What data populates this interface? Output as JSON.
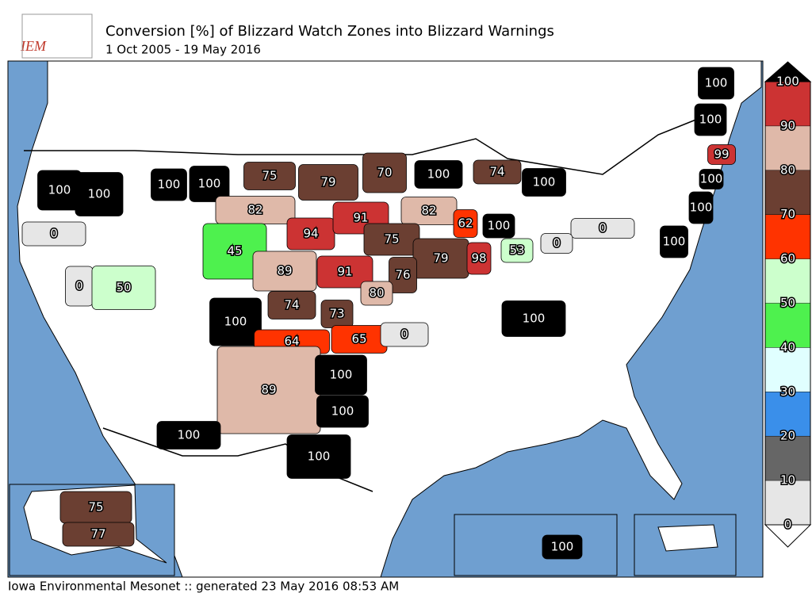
{
  "header": {
    "logo_text": "IEM",
    "title": "Conversion [%] of Blizzard Watch Zones into Blizzard Warnings",
    "subtitle": "1 Oct 2005 - 19 May 2016"
  },
  "footer": "Iowa Environmental Mesonet :: generated 23 May 2016 08:53 AM",
  "colorbar": {
    "bounds": [
      0,
      10,
      20,
      30,
      40,
      50,
      60,
      70,
      80,
      90,
      100
    ],
    "colors": [
      "#e6e6e6",
      "#666666",
      "#3a8fea",
      "#e0ffff",
      "#4ef14e",
      "#ccffcc",
      "#ff3300",
      "#6b3f32",
      "#dfb9a9",
      "#cc3333"
    ],
    "over_color": "#000000",
    "under_color": "#ffffff"
  },
  "regions": [
    {
      "value": 100
    },
    {
      "value": 100
    },
    {
      "value": 100
    },
    {
      "value": 100
    },
    {
      "value": 75
    },
    {
      "value": 79
    },
    {
      "value": 70
    },
    {
      "value": 100
    },
    {
      "value": 74
    },
    {
      "value": 100
    },
    {
      "value": 100
    },
    {
      "value": 100
    },
    {
      "value": 99
    },
    {
      "value": 100
    },
    {
      "value": 100
    },
    {
      "value": 100
    },
    {
      "value": 0
    },
    {
      "value": 82
    },
    {
      "value": 94
    },
    {
      "value": 91
    },
    {
      "value": 82
    },
    {
      "value": 62
    },
    {
      "value": 100
    },
    {
      "value": 0
    },
    {
      "value": 45
    },
    {
      "value": 89
    },
    {
      "value": 75
    },
    {
      "value": 79
    },
    {
      "value": 98
    },
    {
      "value": 53
    },
    {
      "value": 0
    },
    {
      "value": 0
    },
    {
      "value": 50
    },
    {
      "value": 91
    },
    {
      "value": 76
    },
    {
      "value": 80
    },
    {
      "value": 74
    },
    {
      "value": 73
    },
    {
      "value": 100
    },
    {
      "value": 64
    },
    {
      "value": 65
    },
    {
      "value": 0
    },
    {
      "value": 100
    },
    {
      "value": 89
    },
    {
      "value": 100
    },
    {
      "value": 100
    },
    {
      "value": 100
    },
    {
      "value": 100
    },
    {
      "value": 75
    },
    {
      "value": 77
    },
    {
      "value": 100
    }
  ]
}
